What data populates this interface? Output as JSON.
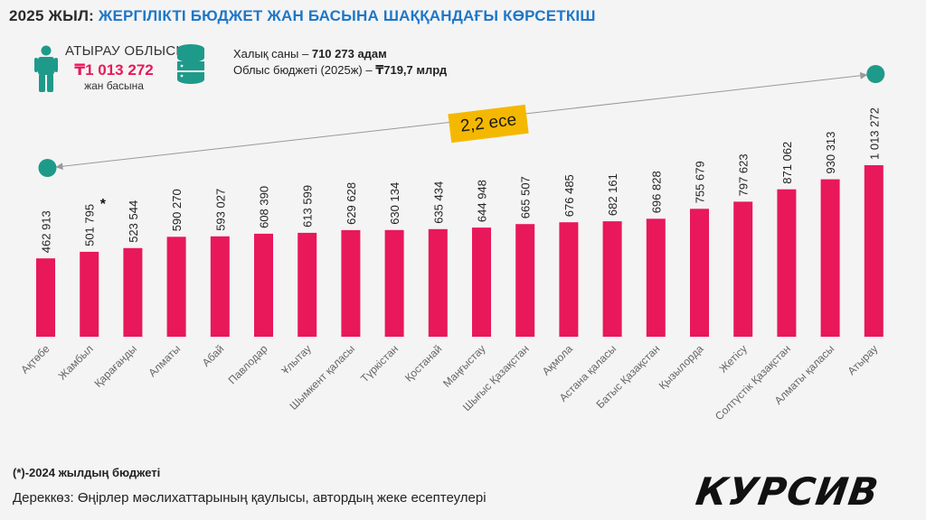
{
  "header": {
    "title_prefix": "2025 ЖЫЛ: ",
    "title_main": "ЖЕРГІЛІКТІ БЮДЖЕТ ЖАН БАСЫНА ШАҚҚАНДАҒЫ КӨРСЕТКІШ"
  },
  "highlight": {
    "region": "АТЫРАУ ОБЛЫСЫ",
    "value": "₸1 013 272",
    "unit": "жан басына",
    "population_label": "Халық саны – ",
    "population_value": "710 273 адам",
    "budget_label": "Облыс бюджеті (2025ж) – ",
    "budget_value": "₸719,7 млрд"
  },
  "ratio_label": "2,2 есе",
  "colors": {
    "bar": "#e8185a",
    "accent_teal": "#1e9a8a",
    "badge": "#f5b800",
    "title_blue": "#1f77c8"
  },
  "chart_data": {
    "type": "bar",
    "categories": [
      "Ақтөбе",
      "Жамбыл",
      "Қарағанды",
      "Алматы",
      "Абай",
      "Павлодар",
      "Ұлытау",
      "Шымкент қаласы",
      "Түркістан",
      "Қостанай",
      "Маңғыстау",
      "Шығыс Қазақстан",
      "Ақмола",
      "Астана қаласы",
      "Батыс Қазақстан",
      "Қызылорда",
      "Жетісу",
      "Солтүстік Қазақстан",
      "Алматы қаласы",
      "Атырау"
    ],
    "values": [
      462913,
      501795,
      523544,
      590270,
      593027,
      608390,
      613599,
      629628,
      630134,
      635434,
      644948,
      665507,
      676485,
      682161,
      696828,
      755679,
      797623,
      871062,
      930313,
      1013272
    ],
    "labels": [
      "462 913",
      "501 795",
      "523 544",
      "590 270",
      "593 027",
      "608 390",
      "613 599",
      "629 628",
      "630 134",
      "635 434",
      "644 948",
      "665 507",
      "676 485",
      "682 161",
      "696 828",
      "755 679",
      "797 623",
      "871 062",
      "930 313",
      "1 013 272"
    ],
    "marked_index": 1,
    "marker_symbol": "*",
    "ylim": [
      0,
      1013272
    ],
    "grid": false,
    "legend": "none"
  },
  "footer": {
    "footnote": "(*)-2024 жылдың бюджеті",
    "source": "Дереккөз: Өңірлер мәслихаттарының қаулысы, автордың  жеке есептеулері",
    "logo": "КУРСИВ"
  }
}
